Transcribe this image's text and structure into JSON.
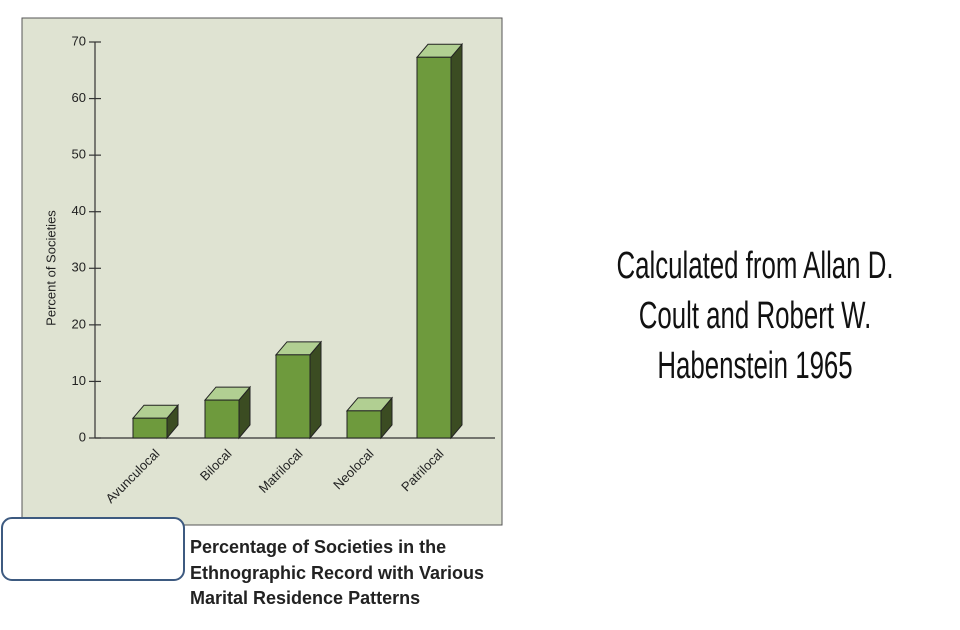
{
  "chart_data": {
    "type": "bar",
    "title": [
      "Percentage of Societies in the",
      "Ethnographic Record with Various",
      "Marital Residence Patterns"
    ],
    "y_label": "Percent of Societies",
    "categories": [
      "Avunculocal",
      "Bilocal",
      "Matrilocal",
      "Neolocal",
      "Patrilocal"
    ],
    "values": [
      3.5,
      6.7,
      14.7,
      4.8,
      67.3
    ],
    "color": "#6e9a3d",
    "ylim": [
      0,
      70
    ],
    "yticks": [
      0,
      10,
      20,
      30,
      40,
      50,
      60,
      70
    ]
  },
  "source": [
    "Calculated from Allan D.",
    "Coult and Robert W.",
    "Habenstein 1965"
  ]
}
